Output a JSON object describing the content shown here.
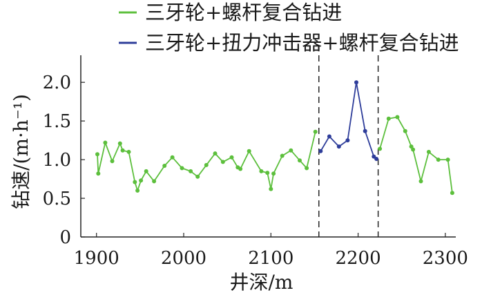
{
  "chart_data": {
    "type": "line",
    "xlabel": "井深/m",
    "ylabel": "钻速/(m·h⁻¹)",
    "xlim": [
      1882,
      2312
    ],
    "ylim": [
      0,
      2.35
    ],
    "x_ticks": [
      1900,
      2000,
      2100,
      2200,
      2300
    ],
    "y_ticks": [
      0,
      0.5,
      1.0,
      1.5,
      2.0
    ],
    "y_tick_labels": [
      "0",
      "0.5",
      "1.0",
      "1.5",
      "2.0"
    ],
    "grid": false,
    "legend_position": "top",
    "separators_x": [
      2155,
      2223
    ],
    "series": [
      {
        "name": "三牙轮+螺杆复合钻进",
        "color": "#5cbf3c",
        "points": [
          [
            1901,
            1.07
          ],
          [
            1902,
            0.82
          ],
          [
            1910,
            1.22
          ],
          [
            1918,
            0.98
          ],
          [
            1927,
            1.21
          ],
          [
            1930,
            1.12
          ],
          [
            1937,
            1.1
          ],
          [
            1944,
            0.71
          ],
          [
            1947,
            0.6
          ],
          [
            1951,
            0.73
          ],
          [
            1957,
            0.85
          ],
          [
            1966,
            0.72
          ],
          [
            1978,
            0.92
          ],
          [
            1987,
            1.03
          ],
          [
            1998,
            0.89
          ],
          [
            2008,
            0.85
          ],
          [
            2016,
            0.78
          ],
          [
            2026,
            0.93
          ],
          [
            2036,
            1.08
          ],
          [
            2045,
            0.97
          ],
          [
            2055,
            1.03
          ],
          [
            2062,
            0.9
          ],
          [
            2065,
            0.88
          ],
          [
            2075,
            1.11
          ],
          [
            2089,
            0.85
          ],
          [
            2096,
            0.83
          ],
          [
            2100,
            0.62
          ],
          [
            2103,
            0.82
          ],
          [
            2113,
            1.05
          ],
          [
            2123,
            1.12
          ],
          [
            2133,
            0.99
          ],
          [
            2141,
            0.89
          ],
          [
            2151,
            1.36
          ]
        ]
      },
      {
        "name": "三牙轮+扭力冲击器+螺杆复合钻进",
        "color": "#2e3d9a",
        "points": [
          [
            2157,
            1.11
          ],
          [
            2167,
            1.3
          ],
          [
            2178,
            1.17
          ],
          [
            2188,
            1.25
          ],
          [
            2198,
            2.0
          ],
          [
            2208,
            1.37
          ],
          [
            2218,
            1.04
          ],
          [
            2221,
            1.01
          ]
        ]
      },
      {
        "name": "",
        "color": "#5cbf3c",
        "points": [
          [
            2225,
            1.14
          ],
          [
            2235,
            1.53
          ],
          [
            2245,
            1.55
          ],
          [
            2254,
            1.37
          ],
          [
            2261,
            1.17
          ],
          [
            2263,
            1.13
          ],
          [
            2272,
            0.72
          ],
          [
            2281,
            1.1
          ],
          [
            2292,
            1.0
          ],
          [
            2303,
            1.0
          ],
          [
            2308,
            0.57
          ]
        ]
      }
    ]
  }
}
